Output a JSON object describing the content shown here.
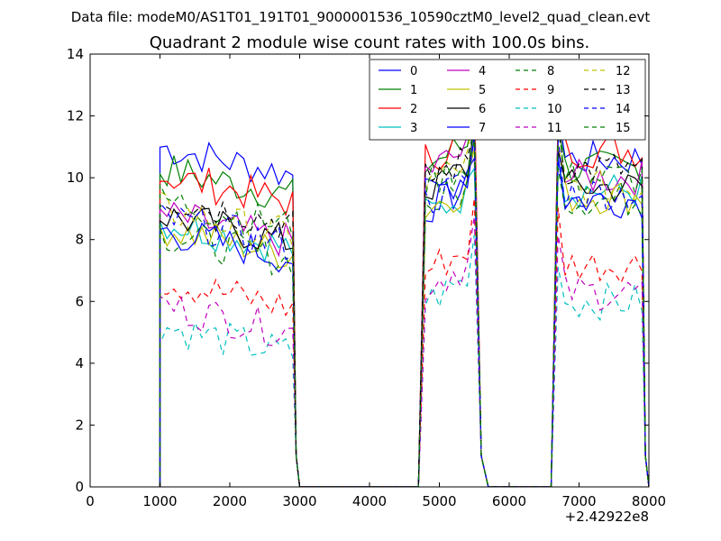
{
  "chart_data": {
    "type": "line",
    "suptitle": "Data file: modeM0/AS1T01_191T01_9000001536_10590cztM0_level2_quad_clean.evt",
    "title": "Quadrant 2 module wise count rates with 100.0s bins.",
    "xlabel": "",
    "ylabel": "",
    "xlim": [
      0,
      8000
    ],
    "ylim": [
      0,
      14
    ],
    "x_offset_label": "+2.42922e8",
    "xticks": [
      0,
      1000,
      2000,
      3000,
      4000,
      5000,
      6000,
      7000,
      8000
    ],
    "xtick_labels": [
      "0",
      "1000",
      "2000",
      "3000",
      "4000",
      "5000",
      "6000",
      "7000",
      "8000"
    ],
    "yticks": [
      0,
      2,
      4,
      6,
      8,
      10,
      12,
      14
    ],
    "ytick_labels": [
      "0",
      "2",
      "4",
      "6",
      "8",
      "10",
      "12",
      "14"
    ],
    "grid": false,
    "legend_position": "top-right",
    "legend_columns": 4,
    "segments": [
      {
        "start": 1000,
        "end": 2900,
        "gap_after": [
          2950,
          3000
        ]
      },
      {
        "start": 4800,
        "end": 5500,
        "gap_after": [
          5600,
          5700
        ]
      },
      {
        "start": 6700,
        "end": 7900,
        "gap_after": [
          7950,
          8000
        ]
      }
    ],
    "series": [
      {
        "name": "0",
        "color": "#0000ff",
        "dash": "solid",
        "level": [
          11.0,
          9.0,
          10.6
        ]
      },
      {
        "name": "1",
        "color": "#008000",
        "dash": "solid",
        "level": [
          10.3,
          10.4,
          10.3
        ]
      },
      {
        "name": "2",
        "color": "#ff0000",
        "dash": "solid",
        "level": [
          10.1,
          10.6,
          10.9
        ]
      },
      {
        "name": "3",
        "color": "#00bfbf",
        "dash": "solid",
        "level": [
          8.6,
          8.8,
          9.6
        ]
      },
      {
        "name": "4",
        "color": "#bf00bf",
        "dash": "solid",
        "level": [
          8.8,
          10.2,
          10.0
        ]
      },
      {
        "name": "5",
        "color": "#bfbf00",
        "dash": "solid",
        "level": [
          8.4,
          9.0,
          9.4
        ]
      },
      {
        "name": "6",
        "color": "#000000",
        "dash": "solid",
        "level": [
          8.8,
          9.6,
          9.7
        ]
      },
      {
        "name": "7",
        "color": "#0000ff",
        "dash": "solid",
        "level": [
          8.3,
          9.4,
          9.3
        ]
      },
      {
        "name": "8",
        "color": "#008000",
        "dash": "dashed",
        "level": [
          8.2,
          9.0,
          9.3
        ]
      },
      {
        "name": "9",
        "color": "#ff0000",
        "dash": "dashed",
        "level": [
          6.7,
          7.0,
          7.2
        ]
      },
      {
        "name": "10",
        "color": "#00bfbf",
        "dash": "dashed",
        "level": [
          5.2,
          6.0,
          6.0
        ]
      },
      {
        "name": "11",
        "color": "#bf00bf",
        "dash": "dashed",
        "level": [
          5.9,
          6.5,
          6.3
        ]
      },
      {
        "name": "12",
        "color": "#bfbf00",
        "dash": "dashed",
        "level": [
          9.0,
          9.8,
          9.7
        ]
      },
      {
        "name": "13",
        "color": "#000000",
        "dash": "dashed",
        "level": [
          9.4,
          9.9,
          10.3
        ]
      },
      {
        "name": "14",
        "color": "#0000ff",
        "dash": "dashed",
        "level": [
          8.7,
          9.2,
          9.5
        ]
      },
      {
        "name": "15",
        "color": "#008000",
        "dash": "dashed",
        "level": [
          9.3,
          9.8,
          10.0
        ]
      }
    ]
  }
}
